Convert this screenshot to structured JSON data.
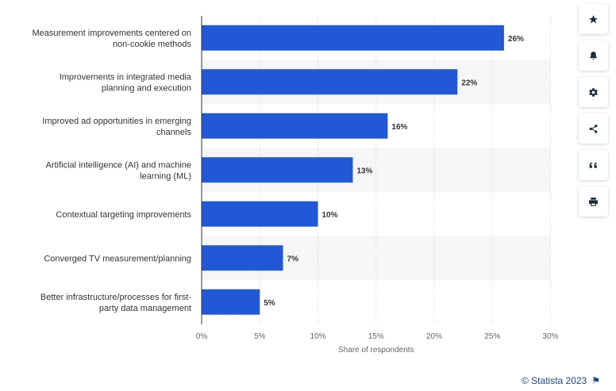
{
  "chart_data": {
    "type": "bar",
    "orientation": "horizontal",
    "categories": [
      [
        "Measurement improvements centered on",
        "non-cookie methods"
      ],
      [
        "Improvements in integrated media",
        "planning and execution"
      ],
      [
        "Improved ad opportunities in emerging",
        "channels"
      ],
      [
        "Artificial intelligence (AI) and machine",
        "learning (ML)"
      ],
      [
        "Contextual targeting improvements"
      ],
      [
        "Converged TV measurement/planning"
      ],
      [
        "Better infrastructure/processes for first-",
        "party data management"
      ]
    ],
    "values": [
      26,
      22,
      16,
      13,
      10,
      7,
      5
    ],
    "value_labels": [
      "26%",
      "22%",
      "16%",
      "13%",
      "10%",
      "7%",
      "5%"
    ],
    "xlabel": "Share of respondents",
    "xlim": [
      0,
      30
    ],
    "xticks": [
      0,
      5,
      10,
      15,
      20,
      25,
      30
    ],
    "xtick_labels": [
      "0%",
      "5%",
      "10%",
      "15%",
      "20%",
      "25%",
      "30%"
    ],
    "bar_color": "#2158d6",
    "grid": true,
    "band_color": "#f6f6f6"
  },
  "toolbar": {
    "buttons": [
      {
        "name": "favorite-button",
        "icon": "star-icon"
      },
      {
        "name": "notification-button",
        "icon": "bell-icon"
      },
      {
        "name": "settings-button",
        "icon": "gear-icon"
      },
      {
        "name": "share-button",
        "icon": "share-icon"
      },
      {
        "name": "cite-button",
        "icon": "quote-icon"
      },
      {
        "name": "print-button",
        "icon": "print-icon"
      }
    ]
  },
  "credit": {
    "text": "© Statista 2023"
  }
}
